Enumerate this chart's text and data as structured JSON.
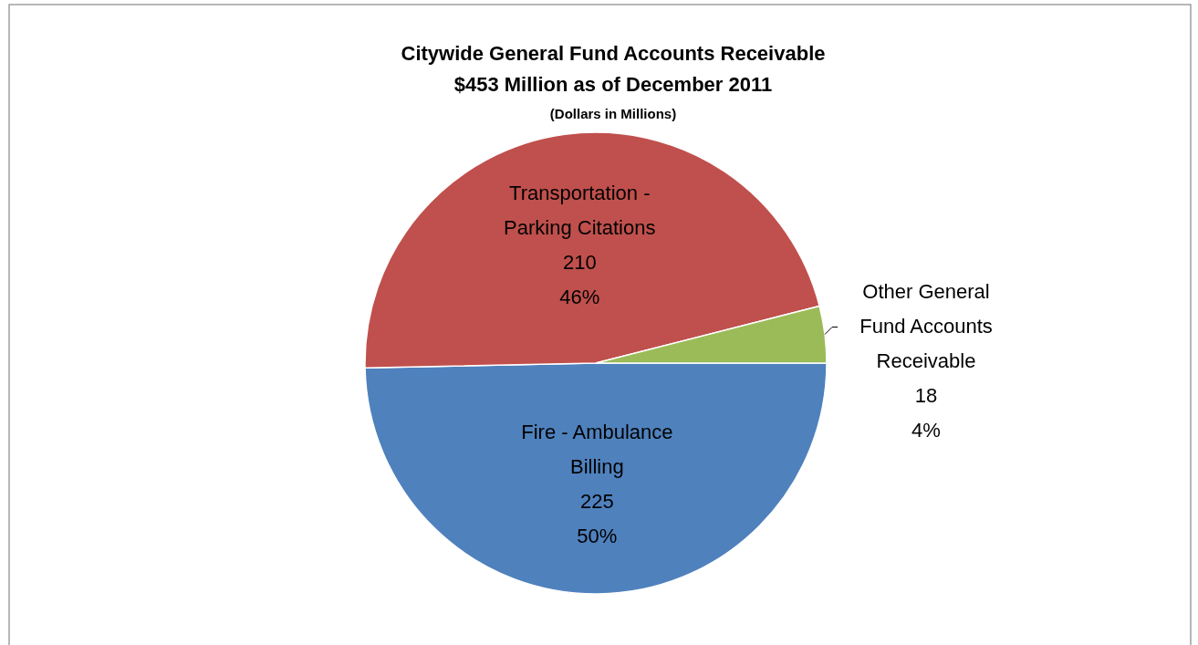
{
  "chart_data": {
    "type": "pie",
    "title": "Citywide General Fund Accounts Receivable\n$453 Million as of December 2011",
    "subtitle": "(Dollars in Millions)",
    "categories": [
      "Fire - Ambulance Billing",
      "Transportation - Parking Citations",
      "Other General Fund Accounts Receivable"
    ],
    "values": [
      225,
      210,
      18
    ],
    "colors": [
      "#4f81bd",
      "#c0504d",
      "#9bbb59"
    ],
    "value_labels": [
      "225\n50%",
      "210\n46%",
      "18\n4%"
    ],
    "legend": false
  }
}
